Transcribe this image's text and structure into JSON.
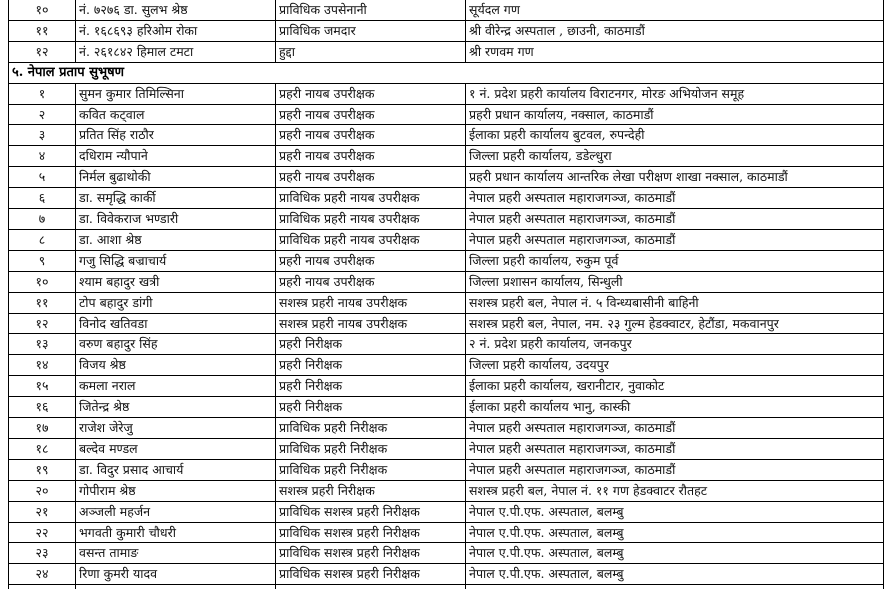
{
  "rows_top": [
    [
      "१०",
      "नं. ७२७६ डा. सुलभ श्रेष्ठ",
      "प्राविधिक उपसेनानी",
      "सूर्यदल गण"
    ],
    [
      "११",
      "नं. १६८६९३ हरिओम रोका",
      "प्राविधिक जमदार",
      "श्री वीरेन्द्र अस्पताल , छाउनी, काठमाडौं"
    ],
    [
      "१२",
      "नं. २६१८४२ हिमाल टमटा",
      "हुद्दा",
      "श्री रणवम गण"
    ]
  ],
  "section": {
    "title": "५. नेपाल प्रताप सुभूषण",
    "rows": [
      [
        "१",
        "सुमन कुमार तिमिल्सिना",
        "प्रहरी नायब उपरीक्षक",
        "१ नं. प्रदेश प्रहरी कार्यालय विराटनगर, मोरङ अभियोजन समूह"
      ],
      [
        "२",
        "कवित कट्वाल",
        "प्रहरी नायब उपरीक्षक",
        "प्रहरी प्रधान कार्यालय, नक्साल, काठमाडौं"
      ],
      [
        "३",
        "प्रतित सिंह राठौर",
        "प्रहरी नायब उपरीक्षक",
        "ईलाका प्रहरी कार्यालय बुटवल, रुपन्देही"
      ],
      [
        "४",
        "दधिराम न्यौपाने",
        "प्रहरी नायब उपरीक्षक",
        "जिल्ला प्रहरी कार्यालय, डडेल्धुरा"
      ],
      [
        "५",
        "निर्मल बुढाथोकी",
        "प्रहरी नायब उपरीक्षक",
        "प्रहरी प्रधान कार्यालय आन्तरिक लेखा परीक्षण शाखा नक्साल, काठमाडौं"
      ],
      [
        "६",
        "डा. समृद्धि कार्की",
        "प्राविधिक प्रहरी नायब उपरीक्षक",
        "नेपाल प्रहरी अस्पताल महाराजगञ्ज, काठमाडौं"
      ],
      [
        "७",
        "डा. विवेकराज भण्डारी",
        "प्राविधिक प्रहरी नायब उपरीक्षक",
        "नेपाल प्रहरी अस्पताल महाराजगञ्ज, काठमाडौं"
      ],
      [
        "८",
        "डा. आशा श्रेष्ठ",
        "प्राविधिक प्रहरी नायब उपरीक्षक",
        "नेपाल प्रहरी अस्पताल महाराजगञ्ज, काठमाडौं"
      ],
      [
        "९",
        "गजु सिद्धि बज्राचार्य",
        "प्रहरी नायब उपरीक्षक",
        "जिल्ला प्रहरी कार्यालय, रुकुम पूर्व"
      ],
      [
        "१०",
        "श्याम बहादुर खत्री",
        "प्रहरी नायब उपरीक्षक",
        "जिल्ला प्रशासन कार्यालय, सिन्धुली"
      ],
      [
        "११",
        "टोप बहादुर डांगी",
        "सशस्त्र प्रहरी नायब उपरीक्षक",
        "सशस्त्र प्रहरी बल, नेपाल नं. ५ विन्ध्यबासीनी बाहिनी"
      ],
      [
        "१२",
        "विनोद खतिवडा",
        "सशस्त्र प्रहरी नायब उपरीक्षक",
        "सशस्त्र प्रहरी बल, नेपाल, नम. २३ गुल्म हेडक्वाटर, हेटौंडा, मकवानपुर"
      ],
      [
        "१३",
        "वरुण बहादुर सिंह",
        "प्रहरी निरीक्षक",
        "२ नं. प्रदेश प्रहरी कार्यालय, जनकपुर"
      ],
      [
        "१४",
        "विजय श्रेष्ठ",
        "प्रहरी निरीक्षक",
        "जिल्ला प्रहरी कार्यालय, उदयपुर"
      ],
      [
        "१५",
        "कमला नराल",
        "प्रहरी निरीक्षक",
        "ईलाका प्रहरी कार्यालय, खरानीटार, नुवाकोट"
      ],
      [
        "१६",
        "जितेन्द्र श्रेष्ठ",
        "प्रहरी निरीक्षक",
        "ईलाका प्रहरी कार्यालय भानु, कास्की"
      ],
      [
        "१७",
        "राजेश जेरेजु",
        "प्राविधिक प्रहरी निरीक्षक",
        "नेपाल प्रहरी अस्पताल महाराजगञ्ज, काठमाडौं"
      ],
      [
        "१८",
        "बल्देव मण्डल",
        "प्राविधिक प्रहरी निरीक्षक",
        "नेपाल प्रहरी अस्पताल महाराजगञ्ज, काठमाडौं"
      ],
      [
        "१९",
        "डा. विदुर प्रसाद आचार्य",
        "प्राविधिक प्रहरी निरीक्षक",
        "नेपाल प्रहरी अस्पताल महाराजगञ्ज, काठमाडौं"
      ],
      [
        "२०",
        "गोपीराम श्रेष्ठ",
        "सशस्त्र प्रहरी निरीक्षक",
        "सशस्त्र प्रहरी बल, नेपाल नं. ११ गण हेडक्वाटर रौतहट"
      ],
      [
        "२१",
        "अञ्जली महर्जन",
        "प्राविधिक सशस्त्र प्रहरी निरीक्षक",
        "नेपाल ए.पी.एफ. अस्पताल, बलम्बु"
      ],
      [
        "२२",
        "भगवती कुमारी चौधरी",
        "प्राविधिक सशस्त्र प्रहरी निरीक्षक",
        "नेपाल ए.पी.एफ. अस्पताल, बलम्बु"
      ],
      [
        "२३",
        "वसन्त तामाङ",
        "प्राविधिक सशस्त्र प्रहरी निरीक्षक",
        "नेपाल ए.पी.एफ. अस्पताल, बलम्बु"
      ],
      [
        "२४",
        "रिणा कुमरी यादव",
        "प्राविधिक सशस्त्र प्रहरी निरीक्षक",
        "नेपाल ए.पी.एफ. अस्पताल, बलम्बु"
      ]
    ]
  }
}
